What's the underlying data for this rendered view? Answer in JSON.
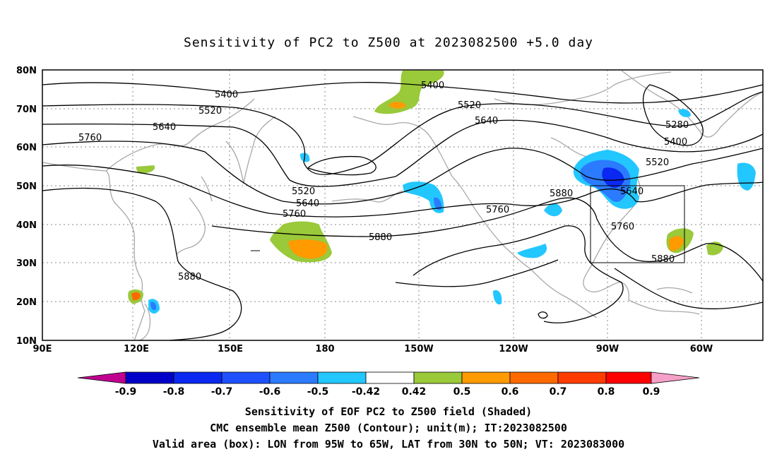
{
  "title": "Sensitivity of PC2 to Z500 at 2023082500 +5.0 day",
  "lat_labels": [
    "80N",
    "70N",
    "60N",
    "50N",
    "40N",
    "30N",
    "20N",
    "10N"
  ],
  "lon_labels": [
    "90E",
    "120E",
    "150E",
    "180",
    "150W",
    "120W",
    "90W",
    "60W"
  ],
  "contour_labels": [
    {
      "text": "5400"
    },
    {
      "text": "5520"
    },
    {
      "text": "5640"
    },
    {
      "text": "5760"
    },
    {
      "text": "5400"
    },
    {
      "text": "5520"
    },
    {
      "text": "5640"
    },
    {
      "text": "5520"
    },
    {
      "text": "5640"
    },
    {
      "text": "5760"
    },
    {
      "text": "5880"
    },
    {
      "text": "5880"
    },
    {
      "text": "5760"
    },
    {
      "text": "5880"
    },
    {
      "text": "5280"
    },
    {
      "text": "5400"
    },
    {
      "text": "5520"
    },
    {
      "text": "5640"
    },
    {
      "text": "5760"
    },
    {
      "text": "5880"
    }
  ],
  "colorbar": {
    "labels": [
      "-0.9",
      "-0.8",
      "-0.7",
      "-0.6",
      "-0.5",
      "-0.42",
      "0.42",
      "0.5",
      "0.6",
      "0.7",
      "0.8",
      "0.9"
    ],
    "colors": [
      "#c0008f",
      "#0000c8",
      "#0a28f0",
      "#1e50ff",
      "#2b7bff",
      "#23c7ff",
      "#ffffff",
      "#9ac93a",
      "#ff9a00",
      "#ff6a00",
      "#ff3c00",
      "#ff0000",
      "#f5a0c8"
    ]
  },
  "valid_box": {
    "lon_min": -95,
    "lon_max": -65,
    "lat_min": 30,
    "lat_max": 50
  },
  "captions": {
    "line1": "Sensitivity of EOF PC2 to Z500 field (Shaded)",
    "line2": "CMC ensemble mean Z500 (Contour); unit(m); IT:2023082500",
    "line3": "Valid area (box): LON from 95W to 65W, LAT from 30N to 50N; VT: 2023083000"
  }
}
